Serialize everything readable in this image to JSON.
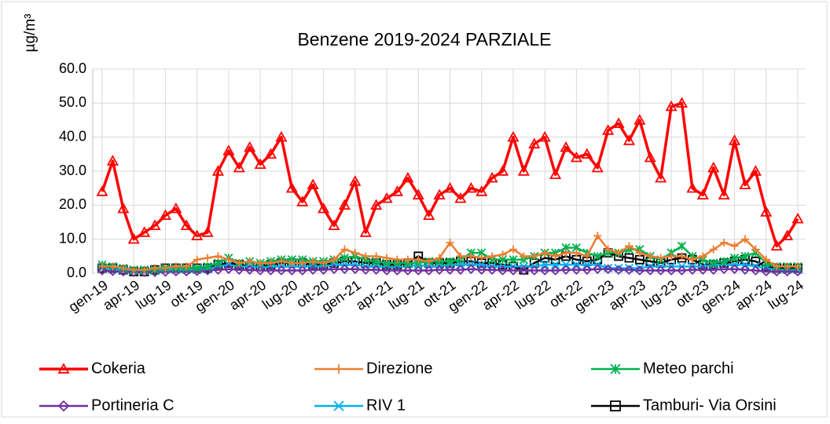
{
  "chart_data": {
    "type": "line",
    "title": "Benzene 2019-2024 PARZIALE",
    "y_label": "µg/m³",
    "categories": [
      "gen-19",
      null,
      null,
      "apr-19",
      null,
      null,
      "lug-19",
      null,
      null,
      "ott-19",
      null,
      null,
      "gen-20",
      null,
      null,
      "apr-20",
      null,
      null,
      "lug-20",
      null,
      null,
      "ott-20",
      null,
      null,
      "gen-21",
      null,
      null,
      "apr-21",
      null,
      null,
      "lug-21",
      null,
      null,
      "ott-21",
      null,
      null,
      "gen-22",
      null,
      null,
      "apr-22",
      null,
      null,
      "lug-22",
      null,
      null,
      "ott-22",
      null,
      null,
      "gen-23",
      null,
      null,
      "apr-23",
      null,
      null,
      "lug-23",
      null,
      null,
      "ott-23",
      null,
      null,
      "gen-24",
      null,
      null,
      "apr-24",
      null,
      null,
      "lug-24"
    ],
    "ylim": [
      0,
      60
    ],
    "yticks": [
      {
        "value": 0,
        "label": "0.0"
      },
      {
        "value": 10,
        "label": "10.0"
      },
      {
        "value": 20,
        "label": "20.0"
      },
      {
        "value": 30,
        "label": "30.0"
      },
      {
        "value": 40,
        "label": "40.0"
      },
      {
        "value": 50,
        "label": "50.0"
      },
      {
        "value": 60,
        "label": "60.0"
      }
    ],
    "grid": true,
    "legend": "bottom",
    "series": [
      {
        "name": "Cokeria",
        "color": "#ff0000",
        "marker": "triangle",
        "values": [
          24,
          33,
          19,
          10,
          12,
          14,
          17,
          19,
          14,
          11,
          12,
          30,
          36,
          31,
          37,
          32,
          35,
          40,
          25,
          21,
          26,
          19,
          14,
          20,
          27,
          12,
          20,
          22,
          24,
          28,
          23,
          17,
          23,
          25,
          22,
          25,
          24,
          28,
          30,
          40,
          30,
          38,
          40,
          29,
          37,
          34,
          35,
          31,
          42,
          44,
          39,
          45,
          34,
          28,
          49,
          50,
          25,
          23,
          31,
          23,
          39,
          26,
          30,
          18,
          8,
          11,
          16
        ]
      },
      {
        "name": "Direzione",
        "color": "#ed7d31",
        "marker": "plus",
        "values": [
          2,
          2,
          1.5,
          1,
          1,
          1.5,
          1.5,
          2,
          2,
          4,
          4.5,
          5,
          4,
          3,
          3.5,
          3,
          3,
          3.5,
          3,
          3,
          3.5,
          3,
          4,
          7,
          6,
          5,
          5,
          4.5,
          4,
          4,
          4,
          3.5,
          4.5,
          9,
          5,
          5,
          4.5,
          5,
          5.5,
          7,
          5,
          5,
          6,
          5,
          6,
          6,
          5,
          11,
          7,
          6,
          8,
          6,
          5,
          4.5,
          5,
          5,
          4,
          5,
          7,
          9,
          8,
          10,
          7,
          4,
          2,
          2,
          2
        ]
      },
      {
        "name": "Meteo parchi",
        "color": "#00b050",
        "marker": "star",
        "values": [
          2.5,
          2,
          1.5,
          1,
          1,
          1,
          1.5,
          1.5,
          1.5,
          1.5,
          2,
          3,
          4.5,
          3,
          3.5,
          3,
          3.5,
          4,
          4,
          4,
          3.5,
          3.5,
          4,
          4.5,
          5,
          4,
          3.5,
          3,
          3,
          3,
          3,
          3.5,
          3.5,
          3.5,
          4,
          6,
          6,
          4,
          4,
          4,
          4,
          5,
          6,
          6,
          7.5,
          7.5,
          6,
          5,
          6,
          6,
          7,
          7,
          5,
          4,
          6,
          8,
          5,
          4,
          3,
          3.5,
          4.5,
          5,
          6,
          3,
          2,
          2,
          2
        ]
      },
      {
        "name": "Portineria C",
        "color": "#7030a0",
        "marker": "diamond",
        "values": [
          0.8,
          0.6,
          0.5,
          0.3,
          0.3,
          0.3,
          0.4,
          0.5,
          0.5,
          0.6,
          0.8,
          1,
          1.2,
          1,
          1,
          0.8,
          0.8,
          0.8,
          0.8,
          0.8,
          1,
          1,
          1.2,
          1.2,
          1.2,
          1,
          1,
          0.8,
          0.8,
          0.8,
          0.8,
          0.8,
          1,
          1,
          1,
          1.2,
          1,
          1,
          0.8,
          0.8,
          0.8,
          0.8,
          0.8,
          0.8,
          1,
          1,
          1,
          1.2,
          1.2,
          1,
          1,
          0.8,
          0.8,
          0.8,
          0.8,
          0.8,
          1,
          1,
          1,
          1.2,
          1.2,
          1,
          0.8,
          0.5,
          0.5,
          0.5,
          0.5
        ]
      },
      {
        "name": "RIV 1",
        "color": "#00b0f0",
        "marker": "x",
        "values": [
          1.5,
          1.2,
          1,
          0.8,
          0.8,
          0.8,
          1,
          1,
          1,
          1,
          1.2,
          2,
          2.5,
          2,
          2,
          1.8,
          1.8,
          2,
          2,
          2,
          2,
          2,
          2.5,
          2.5,
          2.5,
          2,
          2,
          1.8,
          1.8,
          2,
          2.5,
          2,
          2,
          2.5,
          2.5,
          2.5,
          2.5,
          2,
          2,
          2,
          2,
          2,
          2.5,
          2.5,
          2.5,
          2.5,
          2.5,
          2.5,
          1.5,
          1.5,
          1.5,
          1.5,
          2,
          2,
          2,
          2,
          2,
          2,
          2.5,
          2.5,
          2.5,
          2.5,
          2,
          1.5,
          1,
          1,
          1
        ]
      },
      {
        "name": "Tamburi- Via Orsini",
        "color": "#000000",
        "marker": "square",
        "values": [
          1.5,
          1.5,
          1,
          0.5,
          0.5,
          1,
          1.5,
          1.5,
          1.5,
          1.5,
          1.5,
          2.5,
          3,
          2.5,
          2,
          2,
          2.5,
          3,
          3,
          3,
          2.5,
          2.5,
          3,
          3.5,
          3.5,
          3,
          3,
          2.5,
          2.5,
          3,
          5,
          3,
          3,
          3,
          3.5,
          3.5,
          3,
          3,
          2.5,
          2,
          1,
          3,
          4.5,
          4,
          5,
          4,
          3.5,
          4,
          6,
          5,
          4.5,
          4,
          3.5,
          3,
          4,
          4.5,
          4,
          2.5,
          2.5,
          3,
          3.5,
          4,
          3.5,
          2,
          1.5,
          1.5,
          1.5
        ]
      }
    ]
  }
}
